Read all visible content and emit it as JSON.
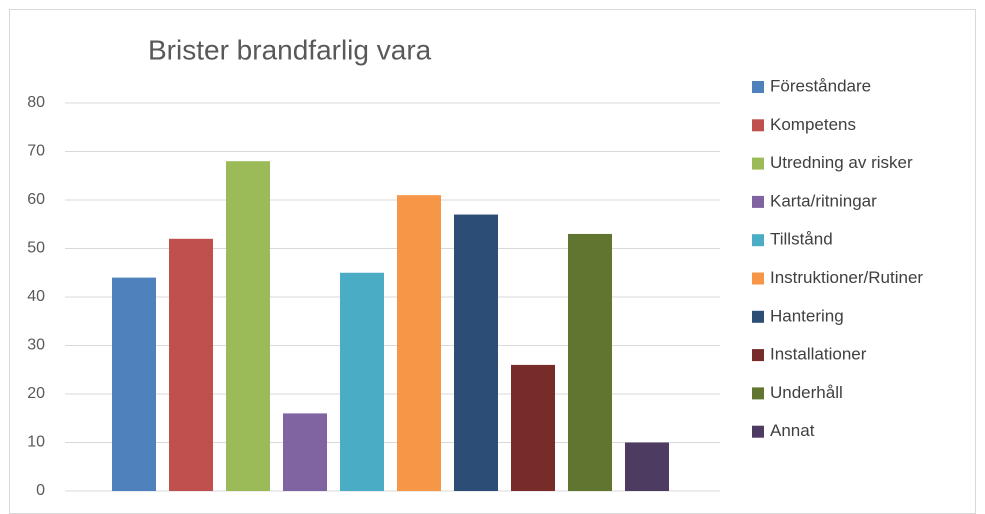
{
  "chart_data": {
    "type": "bar",
    "title": "Brister brandfarlig vara",
    "categories": [
      null
    ],
    "series": [
      {
        "name": "Föreståndare",
        "color": "#4f81bd",
        "values": [
          44
        ]
      },
      {
        "name": "Kompetens",
        "color": "#c0504d",
        "values": [
          52
        ]
      },
      {
        "name": "Utredning av risker",
        "color": "#9bbb59",
        "values": [
          68
        ]
      },
      {
        "name": "Karta/ritningar",
        "color": "#8064a2",
        "values": [
          16
        ]
      },
      {
        "name": "Tillstånd",
        "color": "#4bacc6",
        "values": [
          45
        ]
      },
      {
        "name": "Instruktioner/Rutiner",
        "color": "#f79646",
        "values": [
          61
        ]
      },
      {
        "name": "Hantering",
        "color": "#2c4d75",
        "values": [
          57
        ]
      },
      {
        "name": "Installationer",
        "color": "#772c2a",
        "values": [
          26
        ]
      },
      {
        "name": "Underhåll",
        "color": "#5f7530",
        "values": [
          53
        ]
      },
      {
        "name": "Annat",
        "color": "#4d3b62",
        "values": [
          10
        ]
      }
    ],
    "ylim": [
      0,
      80
    ],
    "yticks": [
      0,
      10,
      20,
      30,
      40,
      50,
      60,
      70,
      80
    ],
    "grid": true,
    "legend": "right"
  }
}
